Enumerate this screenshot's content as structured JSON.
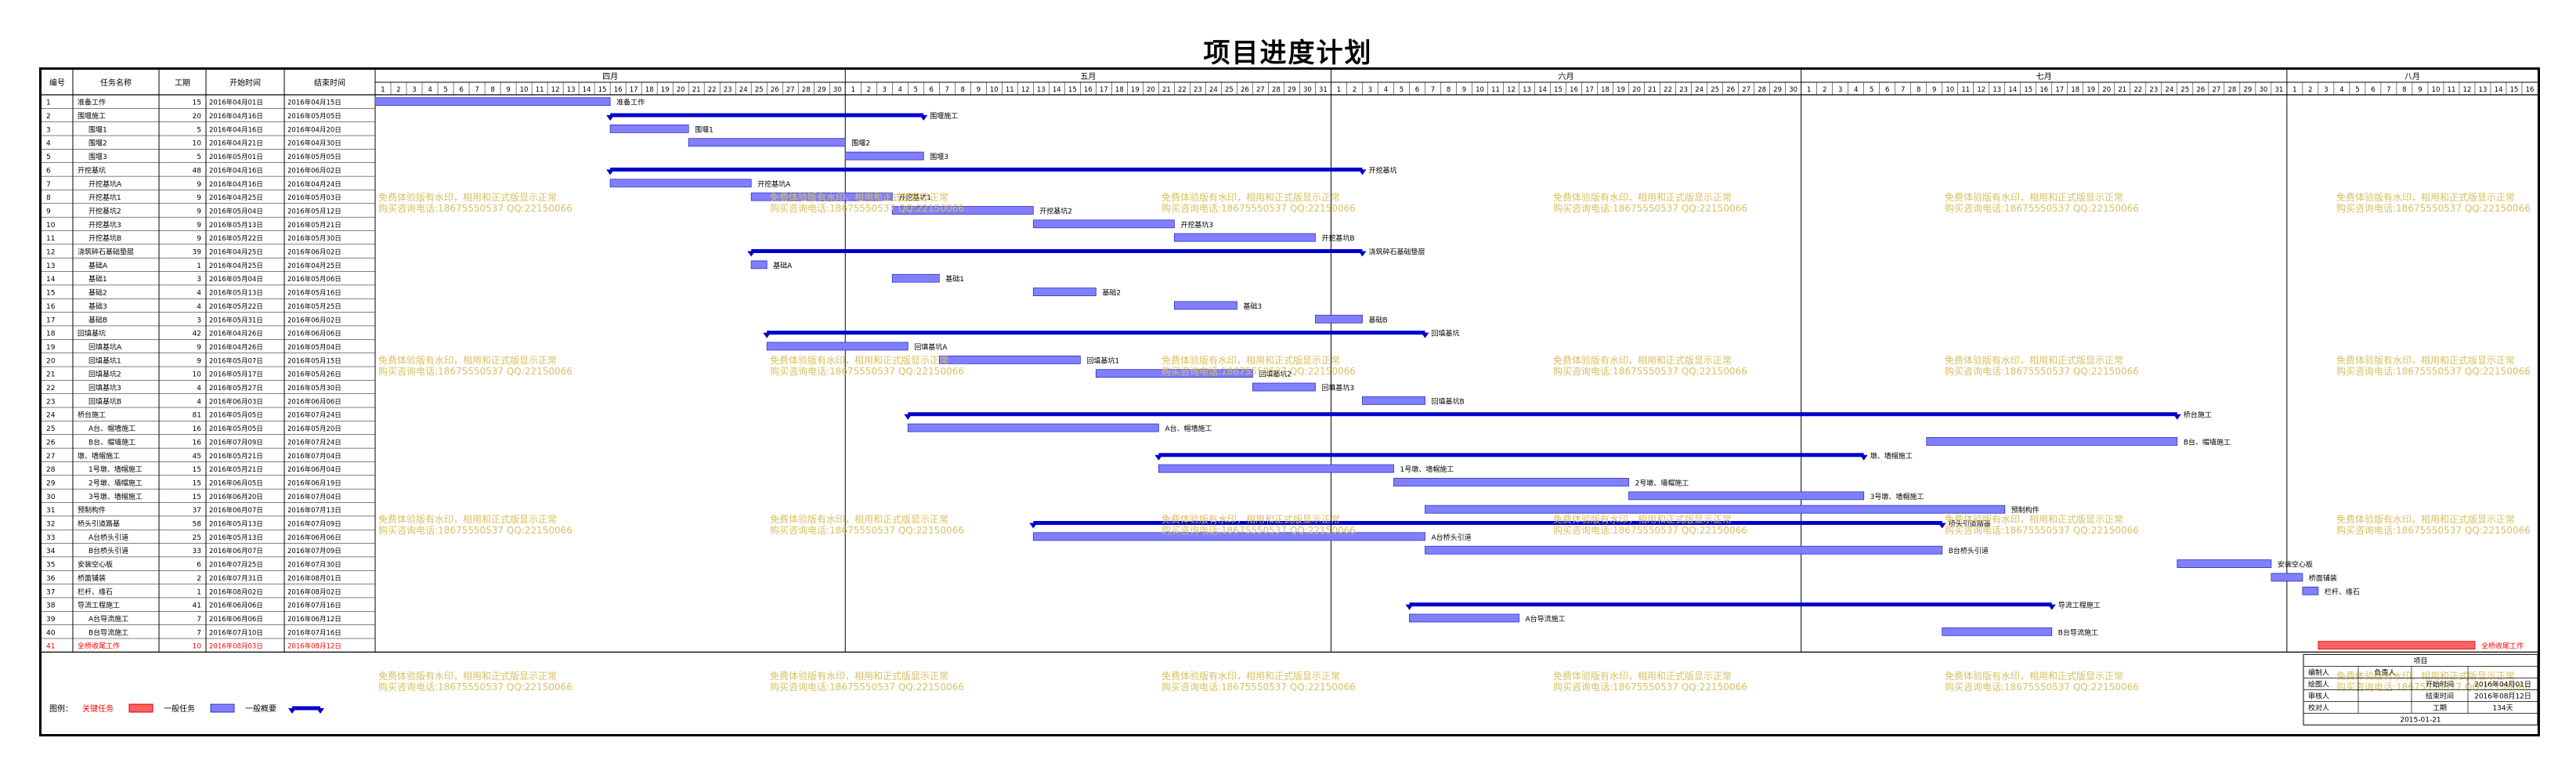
{
  "title": "项目进度计划",
  "columns": {
    "no": "编号",
    "name": "任务名称",
    "duration": "工期",
    "start": "开始时间",
    "finish": "结束时间"
  },
  "legend": {
    "label": "图例：",
    "critical": "关键任务",
    "normal": "一般任务",
    "summary": "一般概要"
  },
  "colors": {
    "task": "#8080ff",
    "summary": "#0000cc",
    "critical": "#ff6060",
    "critical_text": "#ff0000",
    "watermark": "#d8c060"
  },
  "watermark": {
    "line1": "免费体验版有水印，相用和正式版显示正常",
    "line2": "购买咨询电话:18675550537 QQ:22150066"
  },
  "info_table": {
    "header": "项目",
    "rows": [
      [
        "编制人",
        "负责人",
        "",
        ""
      ],
      [
        "绘图人",
        "",
        "开始时间",
        "2016年04月01日"
      ],
      [
        "审核人",
        "",
        "结束时间",
        "2016年08月12日"
      ],
      [
        "校对人",
        "",
        "工期",
        "134天"
      ]
    ],
    "footer_date": "2015-01-21"
  },
  "chart_data": {
    "type": "gantt",
    "title": "项目进度计划",
    "months": [
      {
        "label": "四月",
        "days": 30
      },
      {
        "label": "五月",
        "days": 31
      },
      {
        "label": "六月",
        "days": 30
      },
      {
        "label": "七月",
        "days": 31
      },
      {
        "label": "八月",
        "days": 16
      }
    ],
    "timeline_start": "2016-04-01",
    "timeline_end": "2016-08-16",
    "tasks": [
      {
        "id": 1,
        "name": "准备工作",
        "duration": 15,
        "start": "2016年04月01日",
        "finish": "2016年04月15日",
        "kind": "task",
        "level": 0
      },
      {
        "id": 2,
        "name": "围堰施工",
        "duration": 20,
        "start": "2016年04月16日",
        "finish": "2016年05月05日",
        "kind": "summary",
        "level": 0
      },
      {
        "id": 3,
        "name": "围堰1",
        "duration": 5,
        "start": "2016年04月16日",
        "finish": "2016年04月20日",
        "kind": "task",
        "level": 1
      },
      {
        "id": 4,
        "name": "围堰2",
        "duration": 10,
        "start": "2016年04月21日",
        "finish": "2016年04月30日",
        "kind": "task",
        "level": 1
      },
      {
        "id": 5,
        "name": "围堰3",
        "duration": 5,
        "start": "2016年05月01日",
        "finish": "2016年05月05日",
        "kind": "task",
        "level": 1
      },
      {
        "id": 6,
        "name": "开挖基坑",
        "duration": 48,
        "start": "2016年04月16日",
        "finish": "2016年06月02日",
        "kind": "summary",
        "level": 0
      },
      {
        "id": 7,
        "name": "开挖基坑A",
        "duration": 9,
        "start": "2016年04月16日",
        "finish": "2016年04月24日",
        "kind": "task",
        "level": 1
      },
      {
        "id": 8,
        "name": "开挖基坑1",
        "duration": 9,
        "start": "2016年04月25日",
        "finish": "2016年05月03日",
        "kind": "task",
        "level": 1
      },
      {
        "id": 9,
        "name": "开挖基坑2",
        "duration": 9,
        "start": "2016年05月04日",
        "finish": "2016年05月12日",
        "kind": "task",
        "level": 1
      },
      {
        "id": 10,
        "name": "开挖基坑3",
        "duration": 9,
        "start": "2016年05月13日",
        "finish": "2016年05月21日",
        "kind": "task",
        "level": 1
      },
      {
        "id": 11,
        "name": "开挖基坑B",
        "duration": 9,
        "start": "2016年05月22日",
        "finish": "2016年05月30日",
        "kind": "task",
        "level": 1
      },
      {
        "id": 12,
        "name": "浇筑碎石基础垫层",
        "duration": 39,
        "start": "2016年04月25日",
        "finish": "2016年06月02日",
        "kind": "summary",
        "level": 0
      },
      {
        "id": 13,
        "name": "基础A",
        "duration": 1,
        "start": "2016年04月25日",
        "finish": "2016年04月25日",
        "kind": "task",
        "level": 1
      },
      {
        "id": 14,
        "name": "基础1",
        "duration": 3,
        "start": "2016年05月04日",
        "finish": "2016年05月06日",
        "kind": "task",
        "level": 1
      },
      {
        "id": 15,
        "name": "基础2",
        "duration": 4,
        "start": "2016年05月13日",
        "finish": "2016年05月16日",
        "kind": "task",
        "level": 1
      },
      {
        "id": 16,
        "name": "基础3",
        "duration": 4,
        "start": "2016年05月22日",
        "finish": "2016年05月25日",
        "kind": "task",
        "level": 1
      },
      {
        "id": 17,
        "name": "基础B",
        "duration": 3,
        "start": "2016年05月31日",
        "finish": "2016年06月02日",
        "kind": "task",
        "level": 1
      },
      {
        "id": 18,
        "name": "回填基坑",
        "duration": 42,
        "start": "2016年04月26日",
        "finish": "2016年06月06日",
        "kind": "summary",
        "level": 0
      },
      {
        "id": 19,
        "name": "回填基坑A",
        "duration": 9,
        "start": "2016年04月26日",
        "finish": "2016年05月04日",
        "kind": "task",
        "level": 1
      },
      {
        "id": 20,
        "name": "回填基坑1",
        "duration": 9,
        "start": "2016年05月07日",
        "finish": "2016年05月15日",
        "kind": "task",
        "level": 1
      },
      {
        "id": 21,
        "name": "回填基坑2",
        "duration": 10,
        "start": "2016年05月17日",
        "finish": "2016年05月26日",
        "kind": "task",
        "level": 1
      },
      {
        "id": 22,
        "name": "回填基坑3",
        "duration": 4,
        "start": "2016年05月27日",
        "finish": "2016年05月30日",
        "kind": "task",
        "level": 1
      },
      {
        "id": 23,
        "name": "回填基坑B",
        "duration": 4,
        "start": "2016年06月03日",
        "finish": "2016年06月06日",
        "kind": "task",
        "level": 1
      },
      {
        "id": 24,
        "name": "桥台施工",
        "duration": 81,
        "start": "2016年05月05日",
        "finish": "2016年07月24日",
        "kind": "summary",
        "level": 0
      },
      {
        "id": 25,
        "name": "A台、帽墙施工",
        "duration": 16,
        "start": "2016年05月05日",
        "finish": "2016年05月20日",
        "kind": "task",
        "level": 1
      },
      {
        "id": 26,
        "name": "B台、帽墙施工",
        "duration": 16,
        "start": "2016年07月09日",
        "finish": "2016年07月24日",
        "kind": "task",
        "level": 1
      },
      {
        "id": 27,
        "name": "墩、墙帽施工",
        "duration": 45,
        "start": "2016年05月21日",
        "finish": "2016年07月04日",
        "kind": "summary",
        "level": 0
      },
      {
        "id": 28,
        "name": "1号墩、墙帽施工",
        "duration": 15,
        "start": "2016年05月21日",
        "finish": "2016年06月04日",
        "kind": "task",
        "level": 1
      },
      {
        "id": 29,
        "name": "2号墩、墙帽施工",
        "duration": 15,
        "start": "2016年06月05日",
        "finish": "2016年06月19日",
        "kind": "task",
        "level": 1
      },
      {
        "id": 30,
        "name": "3号墩、墙帽施工",
        "duration": 15,
        "start": "2016年06月20日",
        "finish": "2016年07月04日",
        "kind": "task",
        "level": 1
      },
      {
        "id": 31,
        "name": "预制构件",
        "duration": 37,
        "start": "2016年06月07日",
        "finish": "2016年07月13日",
        "kind": "task",
        "level": 0
      },
      {
        "id": 32,
        "name": "桥头引道路基",
        "duration": 58,
        "start": "2016年05月13日",
        "finish": "2016年07月09日",
        "kind": "summary",
        "level": 0
      },
      {
        "id": 33,
        "name": "A台桥头引道",
        "duration": 25,
        "start": "2016年05月13日",
        "finish": "2016年06月06日",
        "kind": "task",
        "level": 1
      },
      {
        "id": 34,
        "name": "B台桥头引道",
        "duration": 33,
        "start": "2016年06月07日",
        "finish": "2016年07月09日",
        "kind": "task",
        "level": 1
      },
      {
        "id": 35,
        "name": "安装空心板",
        "duration": 6,
        "start": "2016年07月25日",
        "finish": "2016年07月30日",
        "kind": "task",
        "level": 0
      },
      {
        "id": 36,
        "name": "桥面铺装",
        "duration": 2,
        "start": "2016年07月31日",
        "finish": "2016年08月01日",
        "kind": "task",
        "level": 0
      },
      {
        "id": 37,
        "name": "栏杆、缘石",
        "duration": 1,
        "start": "2016年08月02日",
        "finish": "2016年08月02日",
        "kind": "task",
        "level": 0
      },
      {
        "id": 38,
        "name": "导流工程施工",
        "duration": 41,
        "start": "2016年06月06日",
        "finish": "2016年07月16日",
        "kind": "summary",
        "level": 0
      },
      {
        "id": 39,
        "name": "A台导流施工",
        "duration": 7,
        "start": "2016年06月06日",
        "finish": "2016年06月12日",
        "kind": "task",
        "level": 1
      },
      {
        "id": 40,
        "name": "B台导流施工",
        "duration": 7,
        "start": "2016年07月10日",
        "finish": "2016年07月16日",
        "kind": "task",
        "level": 1
      },
      {
        "id": 41,
        "name": "全桥收尾工作",
        "duration": 10,
        "start": "2016年08月03日",
        "finish": "2016年08月12日",
        "kind": "critical",
        "level": 0
      }
    ]
  }
}
